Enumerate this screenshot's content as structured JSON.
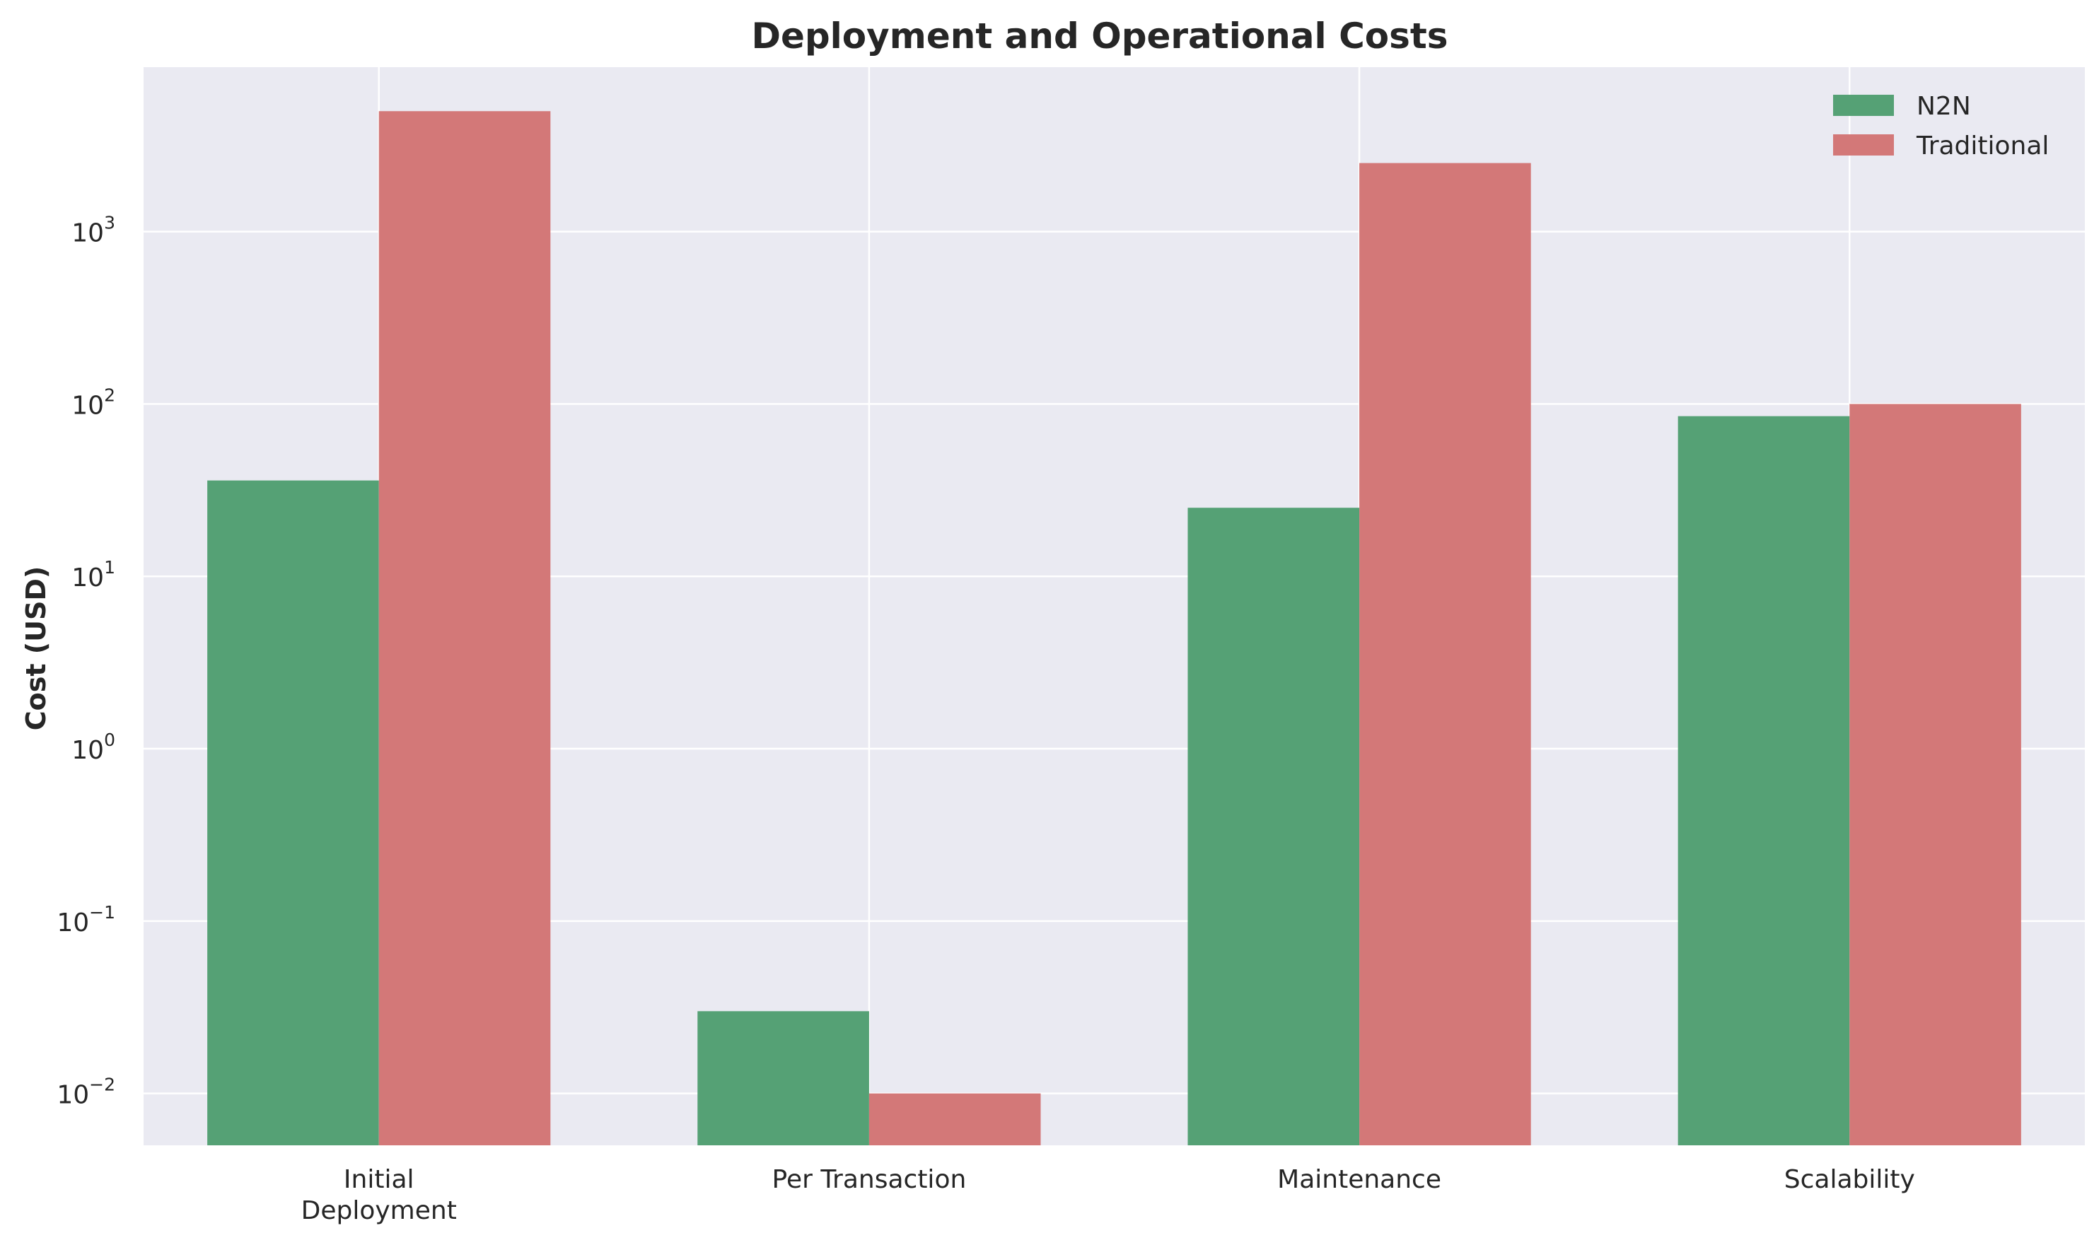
{
  "chart_data": {
    "type": "bar",
    "title": "Deployment and Operational Costs",
    "xlabel": "",
    "ylabel": "Cost (USD)",
    "yscale": "log",
    "ylim": [
      0.005,
      9000
    ],
    "grid": true,
    "legend_position": "top-right",
    "categories": [
      [
        "Initial",
        "Deployment"
      ],
      [
        "Per Transaction"
      ],
      [
        "Maintenance"
      ],
      [
        "Scalability"
      ]
    ],
    "y_ticks": [
      {
        "base": "10",
        "exp": "−2",
        "value": 0.01
      },
      {
        "base": "10",
        "exp": "−1",
        "value": 0.1
      },
      {
        "base": "10",
        "exp": "0",
        "value": 1
      },
      {
        "base": "10",
        "exp": "1",
        "value": 10
      },
      {
        "base": "10",
        "exp": "2",
        "value": 100
      },
      {
        "base": "10",
        "exp": "3",
        "value": 1000
      }
    ],
    "series": [
      {
        "name": "N2N",
        "color": "#55a175",
        "values": [
          36,
          0.03,
          25,
          85
        ]
      },
      {
        "name": "Traditional",
        "color": "#d37878",
        "values": [
          5000,
          0.01,
          2500,
          100
        ]
      }
    ]
  },
  "colors": {
    "plot_background": "#eaeaf2",
    "grid": "#ffffff",
    "text": "#262626"
  }
}
